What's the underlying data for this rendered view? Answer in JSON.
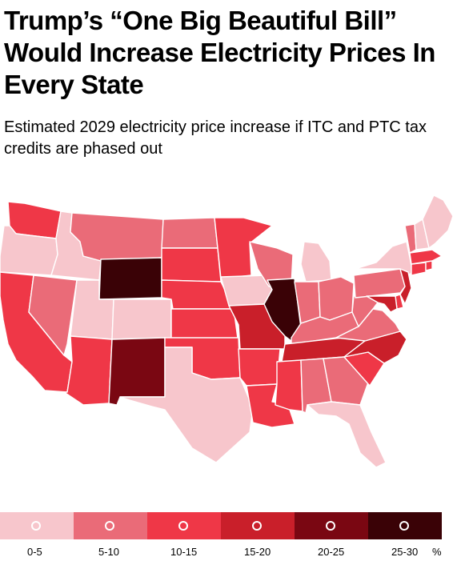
{
  "title": "Trump’s “One Big Beautiful Bill” Would Increase Electricity Prices In Every State",
  "subtitle": "Estimated 2029 electricity price increase if ITC and PTC tax credits are phased out",
  "legend": {
    "unit": "%",
    "bins": [
      {
        "label": "0-5",
        "color": "#f7c6cc"
      },
      {
        "label": "5-10",
        "color": "#ea6b78"
      },
      {
        "label": "10-15",
        "color": "#ef3747"
      },
      {
        "label": "15-20",
        "color": "#c91f2a"
      },
      {
        "label": "20-25",
        "color": "#7a0712"
      },
      {
        "label": "25-30",
        "color": "#3a0206"
      }
    ]
  },
  "states": [
    {
      "id": "WA",
      "name": "Washington",
      "bin": 2
    },
    {
      "id": "OR",
      "name": "Oregon",
      "bin": 0
    },
    {
      "id": "CA",
      "name": "California",
      "bin": 2
    },
    {
      "id": "ID",
      "name": "Idaho",
      "bin": 0
    },
    {
      "id": "NV",
      "name": "Nevada",
      "bin": 1
    },
    {
      "id": "MT",
      "name": "Montana",
      "bin": 1
    },
    {
      "id": "WY",
      "name": "Wyoming",
      "bin": 5
    },
    {
      "id": "UT",
      "name": "Utah",
      "bin": 0
    },
    {
      "id": "CO",
      "name": "Colorado",
      "bin": 0
    },
    {
      "id": "AZ",
      "name": "Arizona",
      "bin": 2
    },
    {
      "id": "NM",
      "name": "New Mexico",
      "bin": 4
    },
    {
      "id": "ND",
      "name": "North Dakota",
      "bin": 1
    },
    {
      "id": "SD",
      "name": "South Dakota",
      "bin": 2
    },
    {
      "id": "NE",
      "name": "Nebraska",
      "bin": 2
    },
    {
      "id": "KS",
      "name": "Kansas",
      "bin": 2
    },
    {
      "id": "OK",
      "name": "Oklahoma",
      "bin": 2
    },
    {
      "id": "TX",
      "name": "Texas",
      "bin": 0
    },
    {
      "id": "MN",
      "name": "Minnesota",
      "bin": 2
    },
    {
      "id": "IA",
      "name": "Iowa",
      "bin": 0
    },
    {
      "id": "MO",
      "name": "Missouri",
      "bin": 3
    },
    {
      "id": "AR",
      "name": "Arkansas",
      "bin": 2
    },
    {
      "id": "LA",
      "name": "Louisiana",
      "bin": 2
    },
    {
      "id": "WI",
      "name": "Wisconsin",
      "bin": 1
    },
    {
      "id": "IL",
      "name": "Illinois",
      "bin": 5
    },
    {
      "id": "MI",
      "name": "Michigan",
      "bin": 0
    },
    {
      "id": "IN",
      "name": "Indiana",
      "bin": 1
    },
    {
      "id": "OH",
      "name": "Ohio",
      "bin": 1
    },
    {
      "id": "KY",
      "name": "Kentucky",
      "bin": 1
    },
    {
      "id": "TN",
      "name": "Tennessee",
      "bin": 3
    },
    {
      "id": "MS",
      "name": "Mississippi",
      "bin": 2
    },
    {
      "id": "AL",
      "name": "Alabama",
      "bin": 1
    },
    {
      "id": "GA",
      "name": "Georgia",
      "bin": 1
    },
    {
      "id": "FL",
      "name": "Florida",
      "bin": 0
    },
    {
      "id": "SC",
      "name": "South Carolina",
      "bin": 2
    },
    {
      "id": "NC",
      "name": "North Carolina",
      "bin": 3
    },
    {
      "id": "VA",
      "name": "Virginia",
      "bin": 1
    },
    {
      "id": "WV",
      "name": "West Virginia",
      "bin": 1
    },
    {
      "id": "PA",
      "name": "Pennsylvania",
      "bin": 1
    },
    {
      "id": "NY",
      "name": "New York",
      "bin": 0
    },
    {
      "id": "NJ",
      "name": "New Jersey",
      "bin": 3
    },
    {
      "id": "DE",
      "name": "Delaware",
      "bin": 2
    },
    {
      "id": "MD",
      "name": "Maryland",
      "bin": 3
    },
    {
      "id": "CT",
      "name": "Connecticut",
      "bin": 2
    },
    {
      "id": "RI",
      "name": "Rhode Island",
      "bin": 2
    },
    {
      "id": "MA",
      "name": "Massachusetts",
      "bin": 2
    },
    {
      "id": "VT",
      "name": "Vermont",
      "bin": 1
    },
    {
      "id": "NH",
      "name": "New Hampshire",
      "bin": 0
    },
    {
      "id": "ME",
      "name": "Maine",
      "bin": 0
    }
  ]
}
